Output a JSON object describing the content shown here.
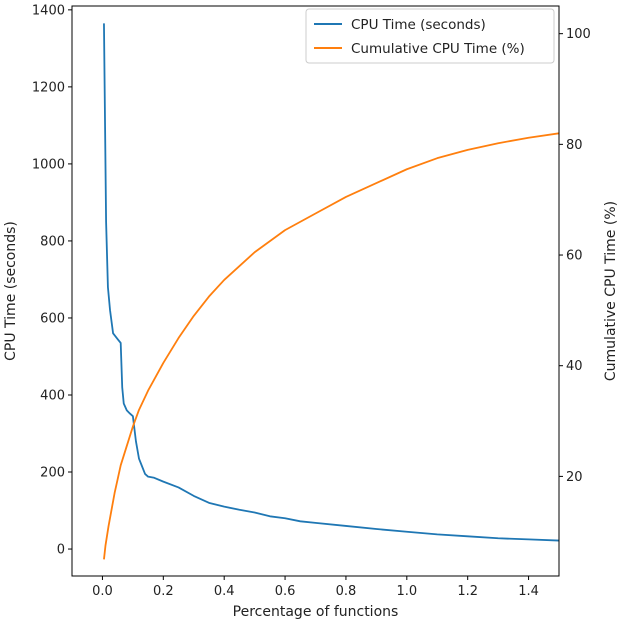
{
  "chart_data": {
    "type": "line",
    "title": "",
    "xlabel": "Percentage of functions",
    "ylabel_left": "CPU Time (seconds)",
    "ylabel_right": "Cumulative CPU Time (%)",
    "xlim": [
      -0.1,
      1.5
    ],
    "ylim_left": [
      -70,
      1410
    ],
    "ylim_right": [
      2,
      105
    ],
    "xticks": [
      0.0,
      0.2,
      0.4,
      0.6,
      0.8,
      1.0,
      1.2,
      1.4
    ],
    "xtick_labels": [
      "0.0",
      "0.2",
      "0.4",
      "0.6",
      "0.8",
      "1.0",
      "1.2",
      "1.4"
    ],
    "yticks_left": [
      0,
      200,
      400,
      600,
      800,
      1000,
      1200,
      1400
    ],
    "ytick_labels_left": [
      "0",
      "200",
      "400",
      "600",
      "800",
      "1000",
      "1200",
      "1400"
    ],
    "yticks_right": [
      20,
      40,
      60,
      80,
      100
    ],
    "ytick_labels_right": [
      "20",
      "40",
      "60",
      "80",
      "100"
    ],
    "legend_position": "top-right",
    "grid": false,
    "series": [
      {
        "name": "CPU Time (seconds)",
        "axis": "left",
        "color": "#1f77b4",
        "x": [
          0.005,
          0.012,
          0.018,
          0.025,
          0.035,
          0.05,
          0.06,
          0.065,
          0.07,
          0.08,
          0.09,
          0.1,
          0.11,
          0.12,
          0.13,
          0.14,
          0.15,
          0.17,
          0.2,
          0.25,
          0.3,
          0.35,
          0.4,
          0.45,
          0.5,
          0.55,
          0.6,
          0.65,
          0.7,
          0.8,
          0.9,
          1.0,
          1.1,
          1.2,
          1.3,
          1.4,
          1.5
        ],
        "values": [
          1365,
          850,
          680,
          620,
          560,
          545,
          535,
          420,
          378,
          360,
          352,
          345,
          280,
          235,
          215,
          195,
          188,
          185,
          175,
          160,
          138,
          120,
          110,
          102,
          95,
          85,
          80,
          72,
          68,
          60,
          52,
          45,
          38,
          33,
          28,
          25,
          22
        ]
      },
      {
        "name": "Cumulative CPU Time (%)",
        "axis": "right",
        "color": "#ff7f0e",
        "x": [
          0.005,
          0.01,
          0.02,
          0.03,
          0.04,
          0.05,
          0.06,
          0.08,
          0.1,
          0.12,
          0.15,
          0.2,
          0.25,
          0.3,
          0.35,
          0.4,
          0.5,
          0.6,
          0.7,
          0.8,
          0.9,
          1.0,
          1.1,
          1.2,
          1.3,
          1.4,
          1.5
        ],
        "values": [
          5,
          7.5,
          11,
          14,
          17,
          19.5,
          22,
          25.5,
          29,
          32,
          35.5,
          40.5,
          45,
          49,
          52.5,
          55.5,
          60.5,
          64.5,
          67.5,
          70.5,
          73,
          75.5,
          77.5,
          79,
          80.2,
          81.2,
          82
        ]
      }
    ]
  }
}
